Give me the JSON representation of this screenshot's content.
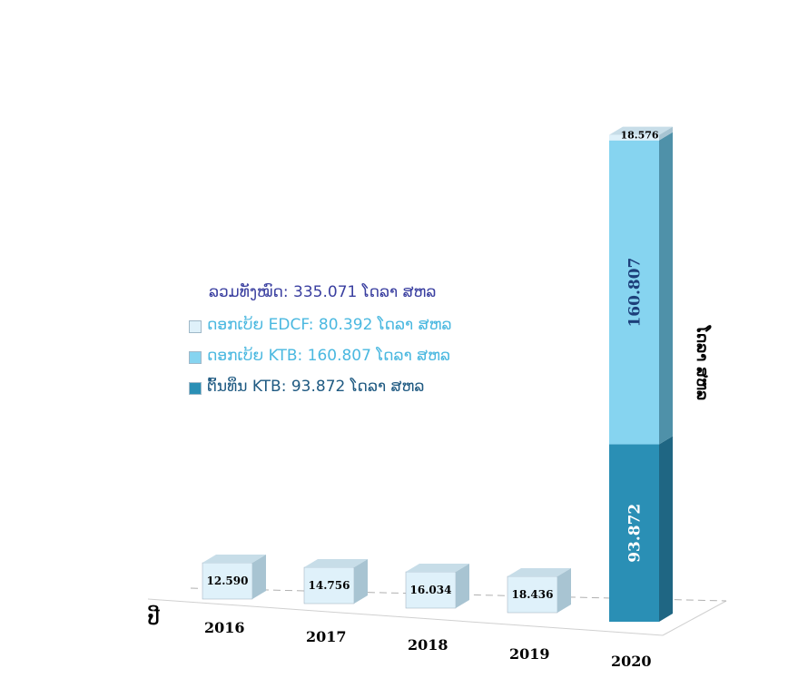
{
  "chart_data": {
    "type": "bar",
    "stacked": true,
    "three_d": true,
    "categories": [
      "2016",
      "2017",
      "2018",
      "2019",
      "2020"
    ],
    "xlabel": "ປີ",
    "ylabel": "ໂດລາ ສຫລ",
    "series": [
      {
        "name": "ຕົ້ນທຶນ  KTB: 93.872 ໂດລາ ສຫລ",
        "values": [
          0,
          0,
          0,
          0,
          93.872
        ],
        "color": "#2a8fb5",
        "side": "#1f6683",
        "top": "#3aa4c8"
      },
      {
        "name": "ດອກເບ້ຍ KTB: 160.807 ໂດລາ ສຫລ",
        "values": [
          0,
          0,
          0,
          0,
          160.807
        ],
        "color": "#86d4f0",
        "side": "#4f91a9",
        "top": "#a7e2f6"
      },
      {
        "name": "ດອກເບ້ຍ EDCF: 80.392 ໂດລາ ສຫລ",
        "values": [
          12.59,
          14.756,
          16.034,
          18.436,
          18.576
        ],
        "color": "#dff1fa",
        "side": "#a8c4d2",
        "top": "#c7dde8"
      }
    ],
    "data_labels": [
      [
        "",
        "",
        "",
        "",
        "93.872"
      ],
      [
        "",
        "",
        "",
        "",
        "160.807"
      ],
      [
        "12.590",
        "14.756",
        "16.034",
        "18.436",
        "18.576"
      ]
    ],
    "total_label": "ລວມທັງໝົດ: 335.071 ໂດລາ ສຫລ",
    "legend_position": "center-left"
  }
}
